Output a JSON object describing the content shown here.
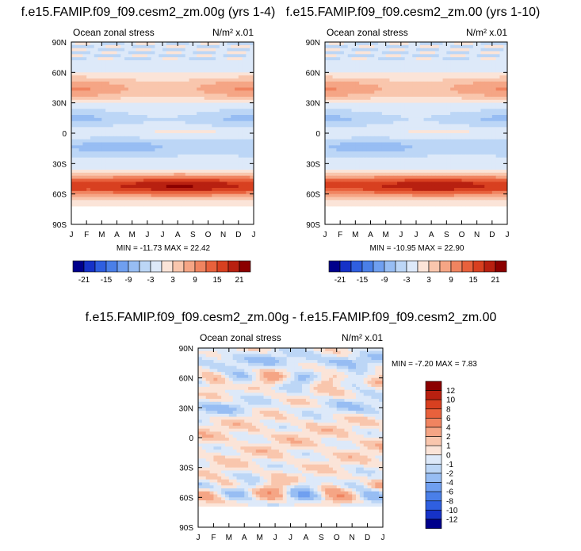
{
  "chart_data": [
    {
      "type": "heatmap",
      "title": "f.e15.FAMIP.f09_f09.cesm2_zm.00g (yrs 1-4)",
      "left_label": "Ocean zonal stress",
      "units": "N/m² x.01",
      "x_ticks": [
        "J",
        "F",
        "M",
        "A",
        "M",
        "J",
        "J",
        "A",
        "S",
        "O",
        "N",
        "D",
        "J"
      ],
      "y_ticks": [
        "90N",
        "60N",
        "30N",
        "0",
        "30S",
        "60S",
        "90S"
      ],
      "min": -11.73,
      "max": 22.42,
      "min_max_label": "MIN = -11.73 MAX =  22.42",
      "colorbar_levels": [
        -21,
        -18,
        -15,
        -12,
        -9,
        -6,
        -3,
        0,
        3,
        6,
        9,
        12,
        15,
        18,
        21
      ],
      "colorbar_labels": [
        "-21",
        "-15",
        "-9",
        "-3",
        "3",
        "9",
        "15",
        "21"
      ],
      "colors": [
        "#00008b",
        "#1632c8",
        "#2f5fe0",
        "#4a7fe8",
        "#6f9ff0",
        "#97bdf3",
        "#bcd6f6",
        "#dde9f9",
        "#fbe4d8",
        "#f9c6ad",
        "#f5a585",
        "#f08460",
        "#e8613c",
        "#d84020",
        "#b82010",
        "#8b0000"
      ]
    },
    {
      "type": "heatmap",
      "title": "f.e15.FAMIP.f09_f09.cesm2_zm.00 (yrs 1-10)",
      "left_label": "Ocean zonal stress",
      "units": "N/m² x.01",
      "x_ticks": [
        "J",
        "F",
        "M",
        "A",
        "M",
        "J",
        "J",
        "A",
        "S",
        "O",
        "N",
        "D",
        "J"
      ],
      "y_ticks": [
        "90N",
        "60N",
        "30N",
        "0",
        "30S",
        "60S",
        "90S"
      ],
      "min": -10.95,
      "max": 22.9,
      "min_max_label": "MIN = -10.95 MAX =  22.90",
      "colorbar_levels": [
        -21,
        -18,
        -15,
        -12,
        -9,
        -6,
        -3,
        0,
        3,
        6,
        9,
        12,
        15,
        18,
        21
      ],
      "colorbar_labels": [
        "-21",
        "-15",
        "-9",
        "-3",
        "3",
        "9",
        "15",
        "21"
      ],
      "colors": [
        "#00008b",
        "#1632c8",
        "#2f5fe0",
        "#4a7fe8",
        "#6f9ff0",
        "#97bdf3",
        "#bcd6f6",
        "#dde9f9",
        "#fbe4d8",
        "#f9c6ad",
        "#f5a585",
        "#f08460",
        "#e8613c",
        "#d84020",
        "#b82010",
        "#8b0000"
      ]
    },
    {
      "type": "heatmap",
      "title": "f.e15.FAMIP.f09_f09.cesm2_zm.00g - f.e15.FAMIP.f09_f09.cesm2_zm.00",
      "left_label": "Ocean zonal stress",
      "units": "N/m² x.01",
      "x_ticks": [
        "J",
        "F",
        "M",
        "A",
        "M",
        "J",
        "J",
        "A",
        "S",
        "O",
        "N",
        "D",
        "J"
      ],
      "y_ticks": [
        "90N",
        "60N",
        "30N",
        "0",
        "30S",
        "60S",
        "90S"
      ],
      "min": -7.2,
      "max": 7.83,
      "min_max_label": "MIN =  -7.20 MAX =   7.83",
      "colorbar_levels": [
        -12,
        -10,
        -8,
        -6,
        -4,
        -2,
        -1,
        0,
        1,
        2,
        4,
        6,
        8,
        10,
        12
      ],
      "colorbar_labels": [
        "-12",
        "-10",
        "-8",
        "-6",
        "-4",
        "-2",
        "-1",
        "0",
        "1",
        "2",
        "4",
        "6",
        "8",
        "10",
        "12"
      ],
      "colors": [
        "#00008b",
        "#1632c8",
        "#2f5fe0",
        "#4a7fe8",
        "#6f9ff0",
        "#97bdf3",
        "#bcd6f6",
        "#dde9f9",
        "#fbe4d8",
        "#f9c6ad",
        "#f5a585",
        "#f08460",
        "#e8613c",
        "#d84020",
        "#b82010",
        "#8b0000"
      ]
    }
  ]
}
